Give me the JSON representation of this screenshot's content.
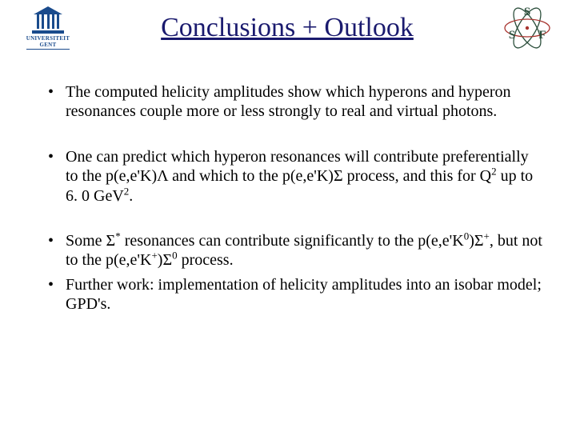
{
  "title": "Conclusions + Outlook",
  "title_color": "#1a1a6e",
  "title_fontsize": 34,
  "body_fontsize": 20,
  "body_color": "#000000",
  "background_color": "#ffffff",
  "logo_left": {
    "name": "universiteit-gent-logo",
    "line1": "UNIVERSITEIT",
    "line2": "GENT",
    "color": "#1a4b8c"
  },
  "logo_right": {
    "name": "ssf-atom-logo",
    "letters": [
      "S",
      "S",
      "F"
    ],
    "orbit_colors": [
      "#a8342f",
      "#2c4f3c",
      "#2c4f3c"
    ],
    "letter_color": "#2c4f3c",
    "nucleus_color": "#a8342f"
  },
  "bullets": [
    {
      "html": "The computed helicity amplitudes show which hyperons and hyperon resonances couple more or less strongly to real and virtual photons."
    },
    {
      "html": "One can predict which hyperon resonances will contribute preferentially to the p(e,e'K)Λ and which to the p(e,e'K)Σ process, and this for Q<sup>2</sup> up to 6. 0 GeV<sup>2</sup>."
    },
    {
      "html": "Some Σ<sup>*</sup> resonances can contribute significantly to the p(e,e'K<sup>0</sup>)Σ<sup>+</sup>, but not to the p(e,e'K<sup>+</sup>)Σ<sup>0</sup> process.",
      "tight": true
    },
    {
      "html": "Further work: implementation of helicity amplitudes into an isobar model; GPD's."
    }
  ]
}
